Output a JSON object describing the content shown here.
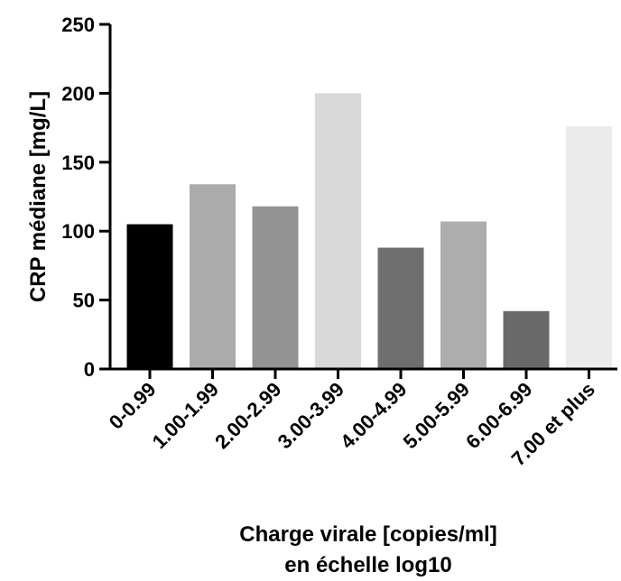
{
  "chart_data": {
    "type": "bar",
    "title": "",
    "xlabel": [
      "Charge virale [copies/ml]",
      "en échelle log10"
    ],
    "ylabel": "CRP médiane [mg/L]",
    "ylim": [
      0,
      250
    ],
    "yticks": [
      0,
      50,
      100,
      150,
      200,
      250
    ],
    "categories": [
      "0-0.99",
      "1.00-1.99",
      "2.00-2.99",
      "3.00-3.99",
      "4.00-4.99",
      "5.00-5.99",
      "6.00-6.99",
      "7.00 et plus"
    ],
    "values": [
      105,
      134,
      118,
      200,
      88,
      107,
      42,
      176
    ],
    "colors": [
      "#000000",
      "#ababab",
      "#939393",
      "#d9d9d9",
      "#6f6f6f",
      "#adadad",
      "#6a6a6a",
      "#ebebeb"
    ],
    "grid": false,
    "legend": "none"
  }
}
